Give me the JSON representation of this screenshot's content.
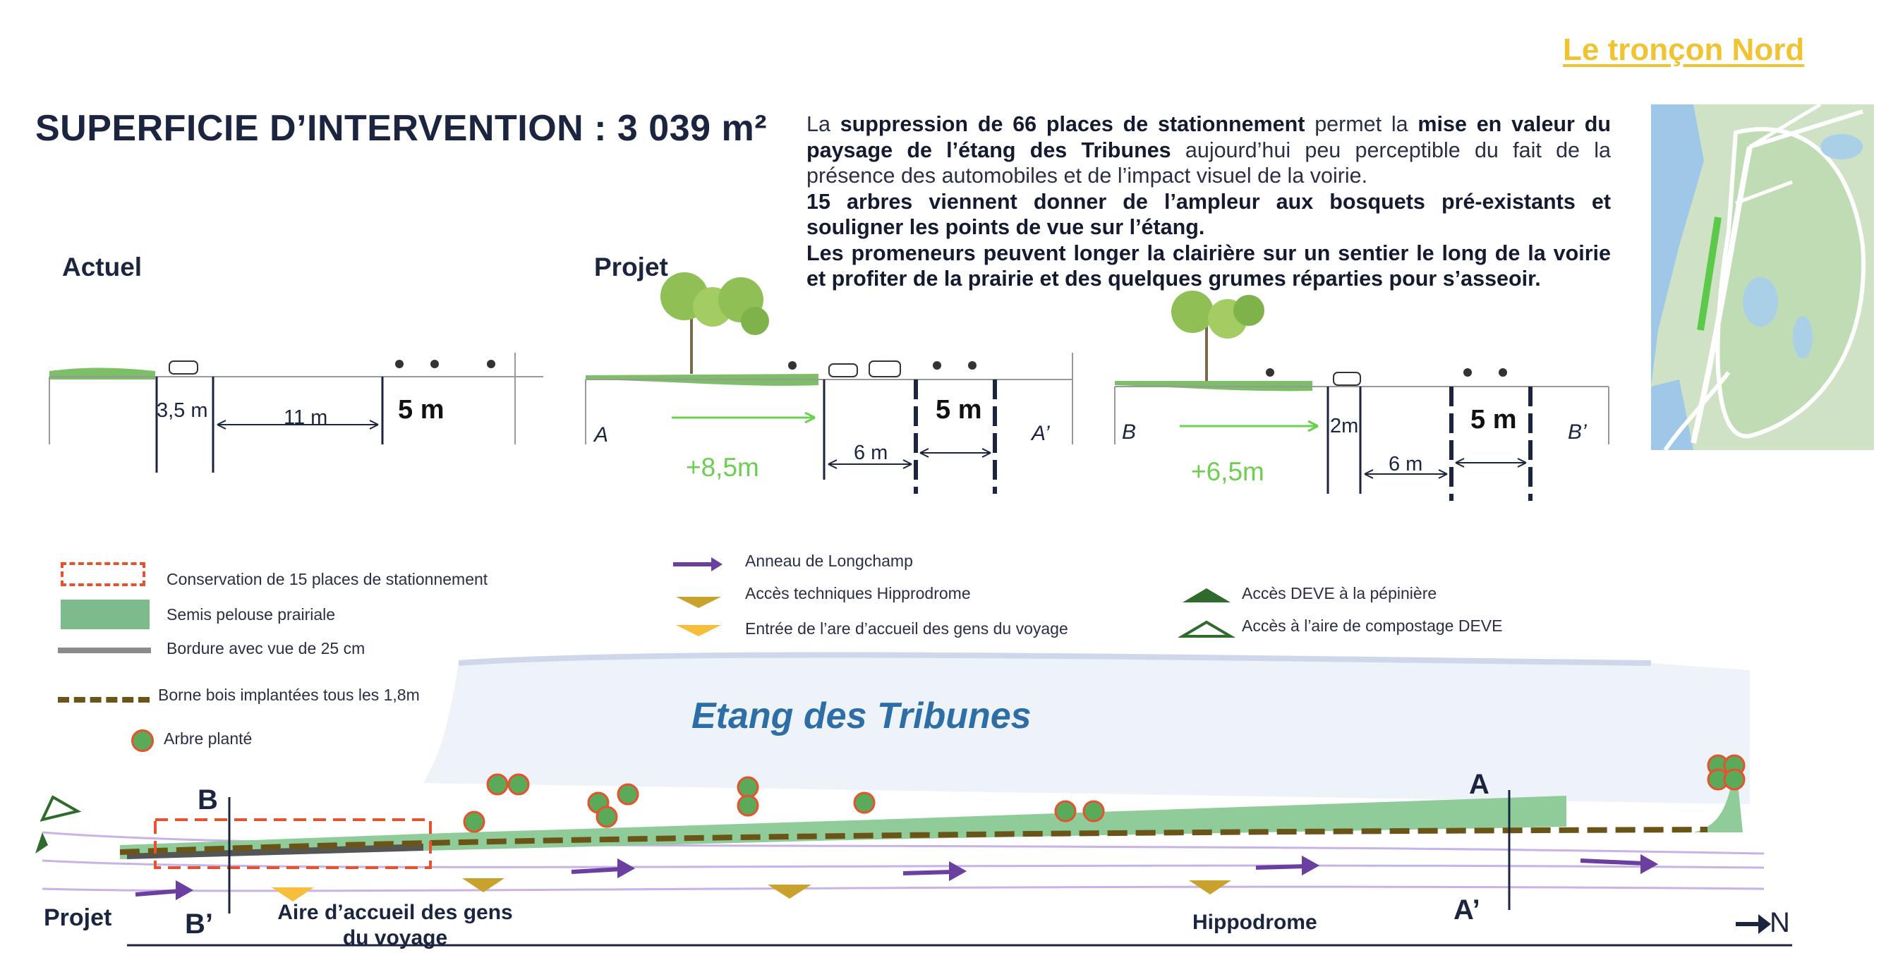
{
  "header": {
    "section_link": "Le tronçon Nord",
    "title": "SUPERFICIE D’INTERVENTION : 3 039 m²"
  },
  "description": {
    "p1_a": "La ",
    "p1_b": "suppression de 66 places de stationnement",
    "p1_c": " permet la ",
    "p1_d": "mise en valeur du paysage de l’étang des Tribunes",
    "p1_e": " aujourd’hui peu perceptible du fait de la présence des automobiles et de l’impact visuel de la voirie.",
    "p2": "15 arbres viennent donner de l’ampleur aux bosquets pré-existants et souligner les points de vue sur l’étang.",
    "p3": "Les promeneurs peuvent longer la clairière sur un sentier le long de la voirie et profiter de la prairie et des quelques grumes réparties pour s’asseoir."
  },
  "sections": {
    "actuel": {
      "label": "Actuel",
      "dim_1": "3,5 m",
      "dim_2": "11 m",
      "dim_3": "5 m"
    },
    "projet_a": {
      "label": "Projet",
      "left": "A",
      "right": "A’",
      "gain": "+8,5m",
      "dim_1": "6 m",
      "dim_2": "5 m"
    },
    "projet_b": {
      "left": "B",
      "right": "B’",
      "gain": "+6,5m",
      "dim_0": "2m",
      "dim_1": "6 m",
      "dim_2": "5 m"
    }
  },
  "legend": {
    "col1": [
      "Conservation de 15 places de stationnement",
      "Semis pelouse prairiale",
      "Bordure avec vue de 25 cm",
      "Borne bois implantées tous les 1,8m",
      "Arbre planté"
    ],
    "col2": [
      "Anneau de Longchamp",
      "Accès techniques Hipprodrome",
      "Entrée de l’are d’accueil des gens du voyage"
    ],
    "col3": [
      "Accès DEVE à la pépinière",
      "Accès à l’aire de compostage DEVE"
    ]
  },
  "plan": {
    "water_label": "Etang des Tribunes",
    "section_b": "B",
    "section_b_prime": "B’",
    "section_a": "A",
    "section_a_prime": "A’",
    "projet": "Projet",
    "aire_line1": "Aire d’accueil des gens",
    "aire_line2": "du voyage",
    "hippodrome": "Hippodrome",
    "north": "N"
  },
  "colors": {
    "navy": "#1c2540",
    "accent_yellow": "#f1c232",
    "green_gain": "#6bcf4f",
    "lawn": "#8fcc9a",
    "parking_red": "#e8512e",
    "path_purple": "#6b3fa0",
    "hippodrome_gold": "#c9a22d",
    "bollard_brown": "#6b5417",
    "deve_green": "#2f6b2c"
  }
}
